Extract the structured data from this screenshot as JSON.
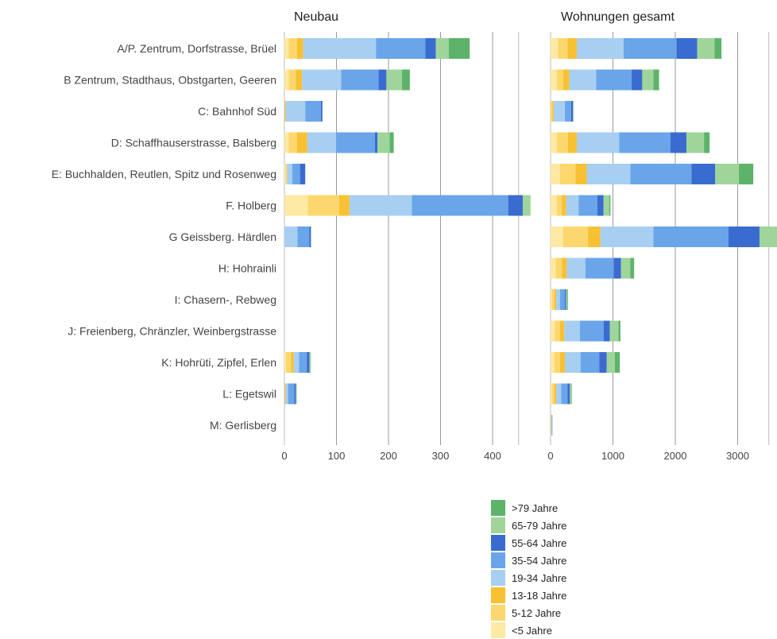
{
  "chart_data": {
    "type": "bar",
    "orientation": "horizontal",
    "stacked": true,
    "categories": [
      "A/P. Zentrum, Dorfstrasse, Brüel",
      "B Zentrum, Stadthaus, Obstgarten, Geeren",
      "C: Bahnhof Süd",
      "D: Schaffhauserstrasse, Balsberg",
      "E: Buchhalden, Reutlen, Spitz und Rosenweg",
      "F. Holberg",
      "G Geissberg. Härdlen",
      "H: Hohrainli",
      "I: Chasern-, Rebweg",
      "J: Freienberg, Chränzler, Weinbergstrasse",
      "K: Hohrüti, Zipfel, Erlen",
      "L: Egetswil",
      "M: Gerlisberg"
    ],
    "series_names": [
      ">79 Jahre",
      "65-79 Jahre",
      "55-64 Jahre",
      "35-54 Jahre",
      "19-34 Jahre",
      "13-18 Jahre",
      "5-12 Jahre",
      "<5 Jahre"
    ],
    "colors": {
      "<5 Jahre": "#fde9a3",
      "5-12 Jahre": "#fbd76d",
      "13-18 Jahre": "#f8c133",
      "19-34 Jahre": "#a7cff2",
      "35-54 Jahre": "#6aa5ea",
      "55-64 Jahre": "#3a6ccf",
      "65-79 Jahre": "#9fd59b",
      ">79 Jahre": "#5db36a"
    },
    "panels": [
      {
        "title": "Neubau",
        "xlim": [
          0,
          450
        ],
        "ticks": [
          0,
          100,
          200,
          300,
          400
        ],
        "tick_labels": [
          "0",
          "100",
          "200",
          "300",
          "400"
        ],
        "segment_order": [
          "<5 Jahre",
          "5-12 Jahre",
          "13-18 Jahre",
          "19-34 Jahre",
          "35-54 Jahre",
          "55-64 Jahre",
          "65-79 Jahre",
          ">79 Jahre"
        ],
        "values": [
          [
            8,
            16,
            12,
            140,
            95,
            20,
            25,
            40
          ],
          [
            8,
            14,
            12,
            75,
            72,
            15,
            30,
            15
          ],
          [
            0,
            0,
            2,
            38,
            30,
            3,
            0,
            0
          ],
          [
            8,
            16,
            20,
            55,
            75,
            5,
            23,
            8
          ],
          [
            2,
            3,
            0,
            10,
            15,
            10,
            0,
            0
          ],
          [
            45,
            60,
            20,
            120,
            185,
            28,
            15,
            0
          ],
          [
            0,
            0,
            0,
            25,
            23,
            3,
            0,
            0
          ],
          [
            0,
            0,
            0,
            0,
            0,
            0,
            0,
            0
          ],
          [
            0,
            0,
            0,
            0,
            0,
            0,
            0,
            0
          ],
          [
            0,
            0,
            0,
            0,
            0,
            0,
            0,
            0
          ],
          [
            3,
            10,
            5,
            10,
            15,
            5,
            3,
            0
          ],
          [
            0,
            0,
            2,
            5,
            12,
            3,
            2,
            0
          ],
          [
            0,
            0,
            0,
            0,
            0,
            0,
            0,
            0
          ]
        ]
      },
      {
        "title": "Wohnungen gesamt",
        "xlim": [
          0,
          3500
        ],
        "ticks": [
          0,
          1000,
          2000,
          3000
        ],
        "tick_labels": [
          "0",
          "1000",
          "2000",
          "3000"
        ],
        "segment_order": [
          "<5 Jahre",
          "5-12 Jahre",
          "13-18 Jahre",
          "19-34 Jahre",
          "35-54 Jahre",
          "55-64 Jahre",
          "65-79 Jahre",
          ">79 Jahre"
        ],
        "values": [
          [
            120,
            150,
            150,
            750,
            850,
            330,
            280,
            110
          ],
          [
            100,
            100,
            100,
            430,
            570,
            170,
            180,
            90
          ],
          [
            0,
            30,
            20,
            180,
            100,
            30,
            10,
            0
          ],
          [
            100,
            180,
            140,
            680,
            820,
            260,
            280,
            90
          ],
          [
            150,
            250,
            180,
            700,
            980,
            380,
            380,
            230
          ],
          [
            100,
            80,
            70,
            200,
            300,
            100,
            90,
            20
          ],
          [
            200,
            400,
            200,
            850,
            1200,
            500,
            350,
            100
          ],
          [
            80,
            100,
            80,
            300,
            450,
            120,
            150,
            60
          ],
          [
            20,
            40,
            30,
            60,
            80,
            20,
            20,
            10
          ],
          [
            70,
            80,
            70,
            250,
            380,
            100,
            140,
            30
          ],
          [
            60,
            90,
            80,
            250,
            300,
            120,
            130,
            80
          ],
          [
            20,
            40,
            30,
            80,
            100,
            40,
            20,
            10
          ],
          [
            0,
            0,
            10,
            10,
            10,
            0,
            0,
            0
          ]
        ]
      }
    ],
    "legend_position": "bottom-right",
    "grid": true
  }
}
